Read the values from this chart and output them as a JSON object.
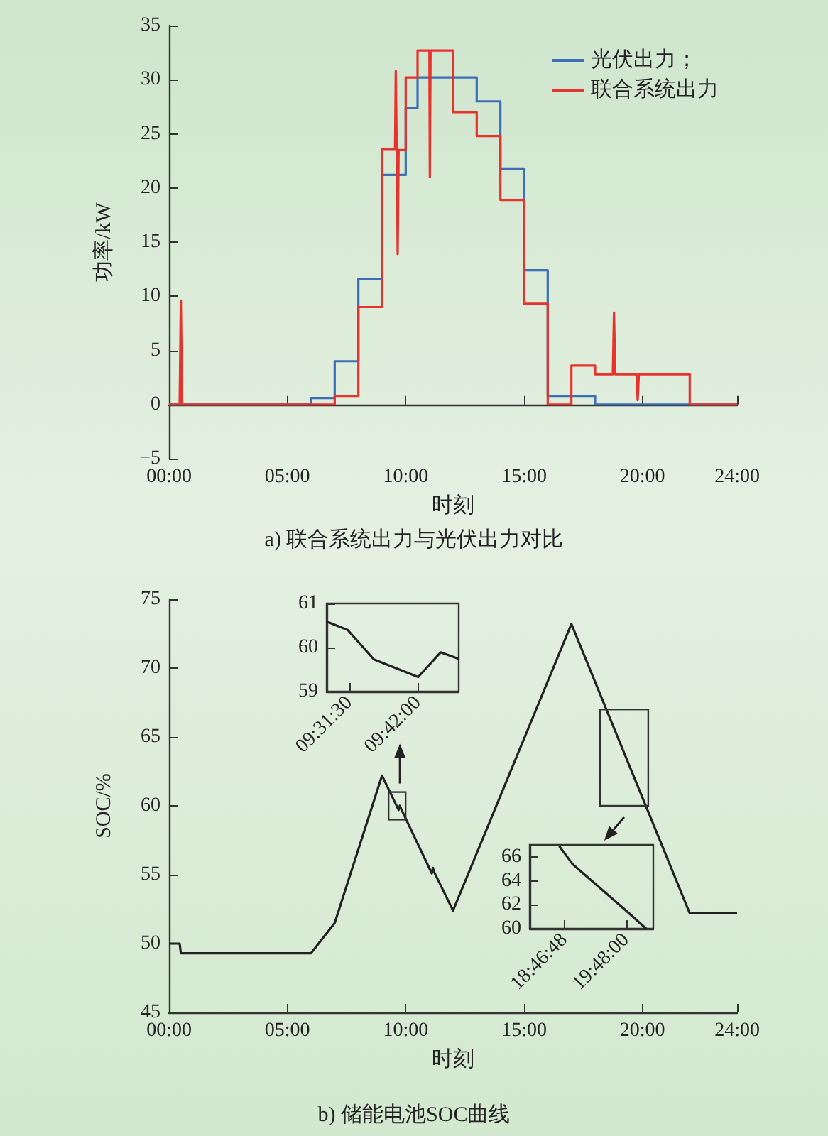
{
  "chart_data": [
    {
      "type": "line",
      "title": "a) 联合系统出力与光伏出力对比",
      "xlabel": "时刻",
      "ylabel": "功率/kW",
      "xlim": [
        0,
        24
      ],
      "xticks": [
        {
          "value": 0,
          "label": "00:00"
        },
        {
          "value": 5,
          "label": "05:00"
        },
        {
          "value": 10,
          "label": "10:00"
        },
        {
          "value": 15,
          "label": "15:00"
        },
        {
          "value": 20,
          "label": "20:00"
        },
        {
          "value": 24,
          "label": "24:00"
        }
      ],
      "ylim": [
        -5,
        35
      ],
      "yticks": [
        {
          "value": -5,
          "label": "−5"
        },
        0,
        5,
        10,
        15,
        20,
        25,
        30,
        35
      ],
      "legend": "top right",
      "marker": "none",
      "series": [
        {
          "name": "光伏出力；",
          "color": "#3d6fb6",
          "x": [
            0,
            6,
            6,
            7,
            7,
            8,
            8,
            9,
            9,
            10,
            10,
            10.5,
            10.5,
            13,
            13,
            14,
            14,
            15,
            15,
            16,
            16,
            18,
            18,
            24
          ],
          "values": [
            0,
            0,
            0.6,
            0.6,
            4,
            4,
            11.6,
            11.6,
            21.2,
            21.2,
            27.4,
            27.4,
            30.2,
            30.2,
            28,
            28,
            21.8,
            21.8,
            12.4,
            12.4,
            0.8,
            0.8,
            0,
            0
          ]
        },
        {
          "name": "联合系统出力",
          "color": "#e8322e",
          "x": [
            0,
            0.45,
            0.5,
            0.55,
            7,
            7,
            8,
            8,
            9,
            9,
            9.55,
            9.58,
            9.62,
            9.66,
            9.7,
            10,
            10,
            10.5,
            10.5,
            11,
            11.02,
            11.05,
            12,
            12,
            13,
            13,
            14,
            14,
            15,
            15,
            16,
            16,
            17,
            17,
            18,
            18,
            18.75,
            18.8,
            18.85,
            19.75,
            19.8,
            19.85,
            22,
            22,
            24
          ],
          "values": [
            0,
            0,
            9.6,
            0,
            0,
            0.8,
            0.8,
            9,
            9,
            23.6,
            23.6,
            30.8,
            23.6,
            13.9,
            23.5,
            23.5,
            30.2,
            30.2,
            32.7,
            32.7,
            21,
            32.7,
            32.7,
            27,
            27,
            24.8,
            24.8,
            18.9,
            18.9,
            9.3,
            9.3,
            0,
            0,
            3.6,
            3.6,
            2.8,
            2.8,
            8.5,
            2.8,
            2.8,
            0.4,
            2.8,
            2.8,
            0,
            0
          ]
        }
      ]
    },
    {
      "type": "line",
      "title": "b) 储能电池SOC曲线",
      "xlabel": "时刻",
      "ylabel": "SOC/%",
      "xlim": [
        0,
        24
      ],
      "xticks": [
        {
          "value": 0,
          "label": "00:00"
        },
        {
          "value": 5,
          "label": "05:00"
        },
        {
          "value": 10,
          "label": "10:00"
        },
        {
          "value": 15,
          "label": "15:00"
        },
        {
          "value": 20,
          "label": "20:00"
        },
        {
          "value": 24,
          "label": "24:00"
        }
      ],
      "ylim": [
        45,
        75
      ],
      "yticks": [
        45,
        50,
        55,
        60,
        65,
        70,
        75
      ],
      "marker": "none",
      "color": "#222222",
      "x": [
        0,
        0.45,
        0.5,
        6,
        7,
        9,
        9.7,
        9.75,
        9.8,
        11.1,
        11.15,
        11.2,
        12,
        17,
        22,
        24
      ],
      "values": [
        50,
        50,
        49.3,
        49.3,
        51.5,
        62.2,
        59.7,
        60.0,
        59.8,
        55.1,
        55.5,
        55.2,
        52.4,
        73.2,
        52.2,
        52.2
      ]
    },
    {
      "type": "line",
      "xlim": [
        9.4667,
        9.8033
      ],
      "xticks": [
        {
          "value": 9.525,
          "label": "09:31:30"
        },
        {
          "value": 9.7,
          "label": "09:42:00"
        }
      ],
      "ylim": [
        59,
        61
      ],
      "yticks": [
        59,
        60,
        61
      ],
      "marker": "none",
      "color": "#222222",
      "x": [
        9.4667,
        9.5202,
        9.587,
        9.7,
        9.7571,
        9.8033
      ],
      "values": [
        60.59,
        60.4,
        59.73,
        59.33,
        59.89,
        59.74
      ]
    },
    {
      "type": "line",
      "xlim": [
        18.207,
        20.247
      ],
      "xticks": [
        {
          "value": 18.78,
          "label": "18:46:48"
        },
        {
          "value": 19.8,
          "label": "19:48:00"
        }
      ],
      "ylim": [
        60,
        67
      ],
      "yticks": [
        60,
        62,
        64,
        66
      ],
      "marker": "none",
      "color": "#222222",
      "x": [
        18.694,
        18.87,
        18.913,
        19.776,
        20.13
      ],
      "values": [
        66.9,
        65.7,
        65.4,
        61.6,
        60.0
      ]
    }
  ]
}
